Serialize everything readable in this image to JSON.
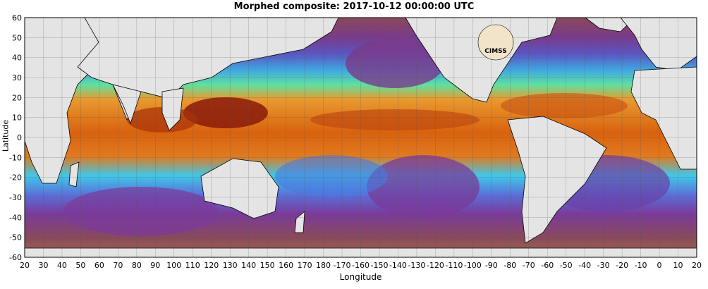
{
  "title": "Morphed composite: 2017-10-12 00:00:00 UTC",
  "xlabel": "Longitude",
  "ylabel": "Latitude",
  "xticks": [
    "20",
    "30",
    "40",
    "50",
    "60",
    "70",
    "80",
    "90",
    "100",
    "110",
    "120",
    "130",
    "140",
    "150",
    "160",
    "170",
    "180",
    "-170",
    "-160",
    "-150",
    "-140",
    "-130",
    "-120",
    "-110",
    "-100",
    "-90",
    "-80",
    "-70",
    "-60",
    "-50",
    "-40",
    "-30",
    "-20",
    "-10",
    "0",
    "10",
    "20"
  ],
  "yticks": [
    "60",
    "50",
    "40",
    "30",
    "20",
    "10",
    "0",
    "-10",
    "-20",
    "-30",
    "-40",
    "-50",
    "-60"
  ],
  "logo_text": "CIMSS",
  "colors": {
    "land": "#e4e4e4",
    "dry_purple": "#7a2e8a",
    "dry_brown": "#8a4a3a",
    "mid_blue": "#3a6fd8",
    "cyan": "#3fd7e8",
    "green": "#7be07a",
    "yellow": "#f2d43a",
    "orange": "#e06a10",
    "dark_red": "#8a1a0a"
  }
}
